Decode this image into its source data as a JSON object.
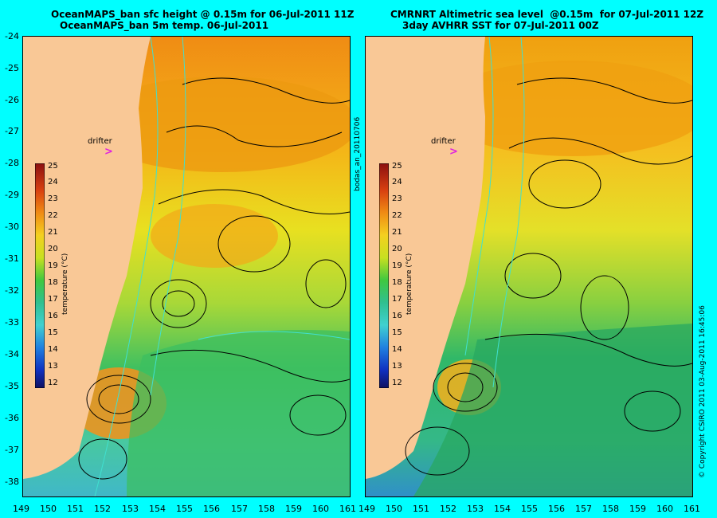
{
  "left_panel": {
    "title_line1": "OceanMAPS_ban sfc height @ 0.15m for 06-Jul-2011 11Z",
    "title_line2": "OceanMAPS_ban 5m temp. 06-Jul-2011",
    "drifter_label": "drifter"
  },
  "right_panel": {
    "title_line1": "CMRNRT Altimetric sea level  @0.15m  for 07-Jul-2011 12Z",
    "title_line2": "3day AVHRR SST for 07-Jul-2011 00Z",
    "drifter_label": "drifter"
  },
  "side_label_middle": "bodas_an_20110706",
  "side_label_right": "© Copyright CSIRO 2011   03-Aug-2011 16:45:06",
  "colorbar": {
    "title": "temperature (°C)",
    "ticks": [
      "25",
      "24",
      "23",
      "22",
      "21",
      "20",
      "19",
      "18",
      "17",
      "16",
      "15",
      "14",
      "13",
      "12"
    ]
  },
  "y_axis_labels": [
    "-24",
    "-25",
    "-26",
    "-27",
    "-28",
    "-29",
    "-30",
    "-31",
    "-32",
    "-33",
    "-34",
    "-35",
    "-36",
    "-37",
    "-38"
  ],
  "x_axis_labels": [
    "149",
    "150",
    "151",
    "152",
    "153",
    "154",
    "155",
    "156",
    "157",
    "158",
    "159",
    "160",
    "161"
  ],
  "colors": {
    "background": "#00ffff",
    "land": "#f9c896",
    "drifter_marker": "#e020e0"
  }
}
